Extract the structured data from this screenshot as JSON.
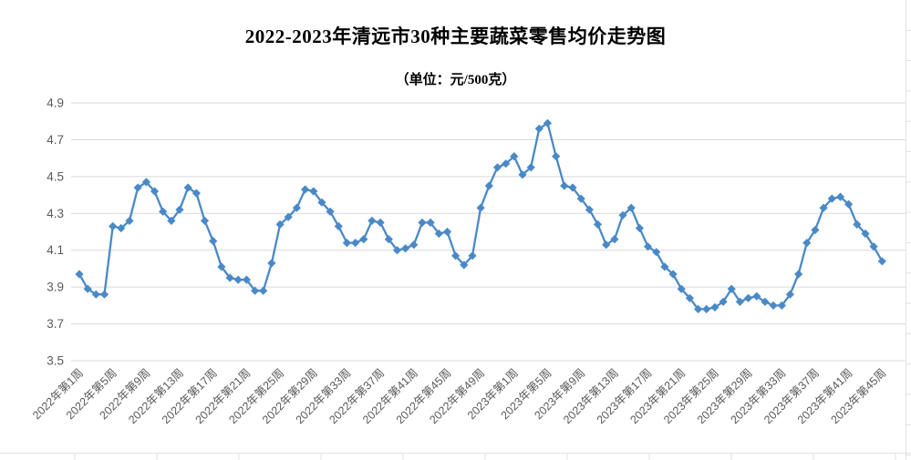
{
  "chart": {
    "title": "2022-2023年清远市30种主要蔬菜零售均价走势图",
    "unit_label": "（单位：元/500克）"
  },
  "colors": {
    "line": "#4a89c7",
    "marker": "#4a89c7",
    "gridline": "#d9d9d9",
    "axis_text": "#595959",
    "title_text": "#000000",
    "spreadsheet_line": "#e2e2e2"
  },
  "chart_data": {
    "type": "line",
    "title": "2022-2023年清远市30种主要蔬菜零售均价走势图",
    "subtitle": "（单位：元/500克）",
    "ylabel": "",
    "xlabel": "",
    "grid": "horizontal",
    "legend": "none",
    "y_axis": {
      "min": 3.5,
      "max": 4.9,
      "step": 0.2,
      "tick_labels": [
        "4.9",
        "4.7",
        "4.5",
        "4.3",
        "4.1",
        "3.9",
        "3.7",
        "3.5"
      ]
    },
    "x_axis": {
      "tick_every_n_weeks": 4,
      "tick_labels": [
        "2022年第1周",
        "2022年第5周",
        "2022年第9周",
        "2022年第13周",
        "2022年第17周",
        "2022年第21周",
        "2022年第25周",
        "2022年第29周",
        "2022年第33周",
        "2022年第37周",
        "2022年第41周",
        "2022年第45周",
        "2022年第49周",
        "2023年第1周",
        "2023年第5周",
        "2023年第9周",
        "2023年第13周",
        "2023年第17周",
        "2023年第21周",
        "2023年第25周",
        "2023年第29周",
        "2023年第33周",
        "2023年第37周",
        "2023年第41周",
        "2023年第45周"
      ]
    },
    "series": [
      {
        "name": "2022年",
        "first_week": 1,
        "values": [
          3.97,
          3.89,
          3.86,
          3.86,
          4.23,
          4.22,
          4.26,
          4.44,
          4.47,
          4.42,
          4.31,
          4.26,
          4.32,
          4.44,
          4.41,
          4.26,
          4.15,
          4.01,
          3.95,
          3.94,
          3.94,
          3.88,
          3.88,
          4.03,
          4.24,
          4.28,
          4.33,
          4.43,
          4.42,
          4.36,
          4.31,
          4.23,
          4.14,
          4.14,
          4.16,
          4.26,
          4.25,
          4.16,
          4.1,
          4.11,
          4.13,
          4.25,
          4.25,
          4.19,
          4.2,
          4.07,
          4.02,
          4.07,
          4.33,
          4.45,
          4.55,
          4.57
        ]
      },
      {
        "name": "2023年",
        "first_week": 1,
        "values": [
          4.61,
          4.51,
          4.55,
          4.76,
          4.79,
          4.61,
          4.45,
          4.44,
          4.38,
          4.32,
          4.24,
          4.13,
          4.16,
          4.29,
          4.33,
          4.22,
          4.12,
          4.09,
          4.01,
          3.97,
          3.89,
          3.84,
          3.78,
          3.78,
          3.79,
          3.82,
          3.89,
          3.82,
          3.84,
          3.85,
          3.82,
          3.8,
          3.8,
          3.86,
          3.97,
          4.14,
          4.21,
          4.33,
          4.38,
          4.39,
          4.35,
          4.24,
          4.19,
          4.12,
          4.04
        ]
      }
    ]
  }
}
